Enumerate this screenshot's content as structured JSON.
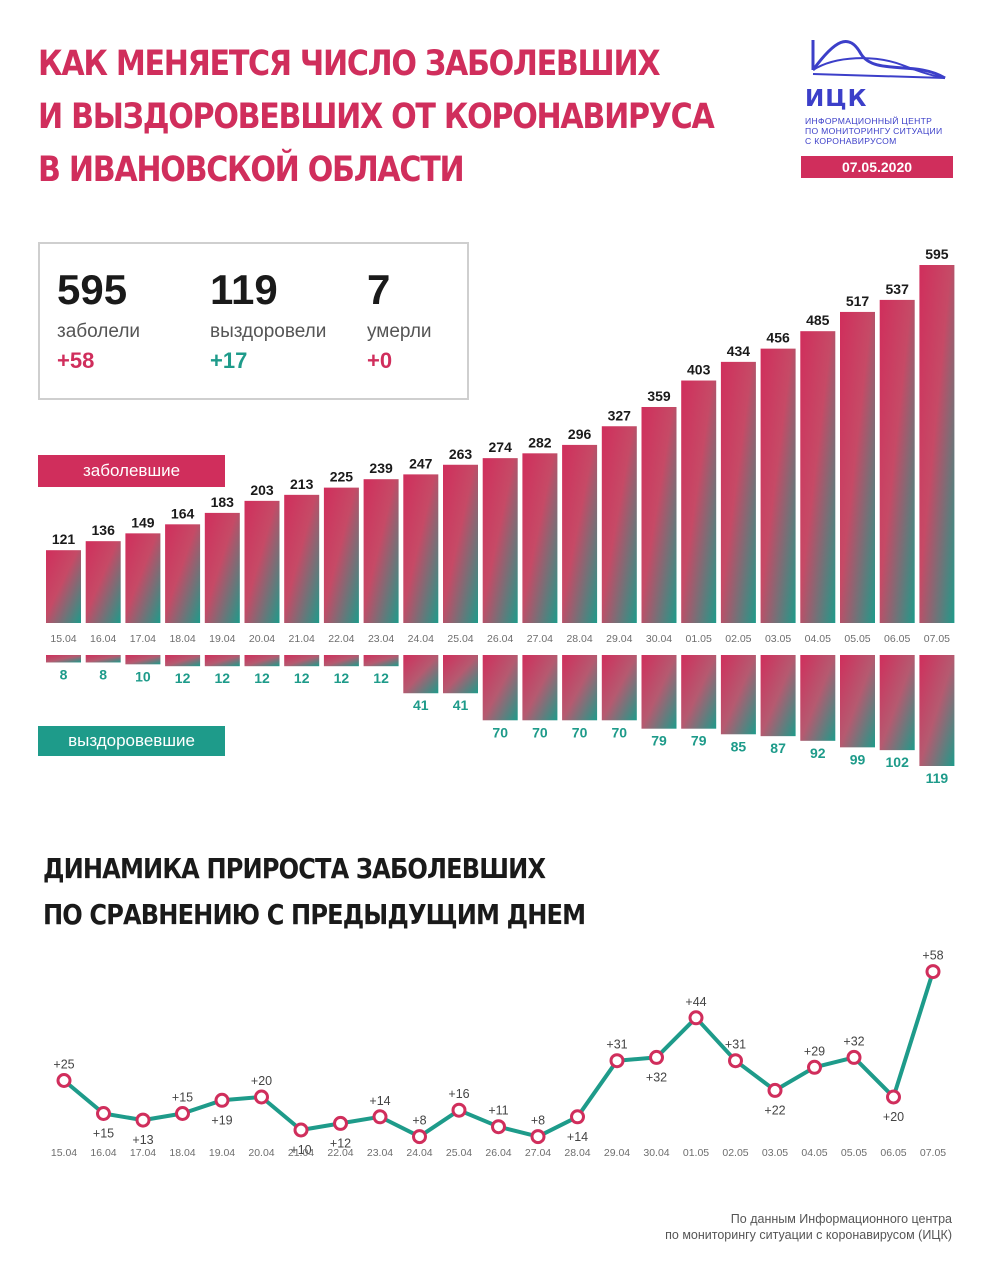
{
  "header": {
    "title_lines": [
      "КАК МЕНЯЕТСЯ ЧИСЛО ЗАБОЛЕВШИХ",
      "И ВЫЗДОРОВЕВШИХ ОТ КОРОНАВИРУСА",
      "В ИВАНОВСКОЙ ОБЛАСТИ"
    ],
    "logo_word": "ИЦК",
    "logo_sub_lines": [
      "ИНФОРМАЦИОННЫЙ ЦЕНТР",
      "ПО МОНИТОРИНГУ СИТУАЦИИ",
      "С КОРОНАВИРУСОМ"
    ],
    "date": "07.05.2020"
  },
  "stats": {
    "sick": {
      "value": "595",
      "label": "заболели",
      "delta": "+58"
    },
    "recovered": {
      "value": "119",
      "label": "выздоровели",
      "delta": "+17"
    },
    "died": {
      "value": "7",
      "label": "умерли",
      "delta": "+0"
    }
  },
  "badges": {
    "sick": "заболевшие",
    "recovered": "выздоровевшие"
  },
  "subtitle_lines": [
    "ДИНАМИКА ПРИРОСТА ЗАБОЛЕВШИХ",
    "ПО СРАВНЕНИЮ С ПРЕДЫДУЩИМ ДНЕМ"
  ],
  "source_lines": [
    "По данным Информационного центра",
    "по мониторингу ситуации с коронавирусом (ИЦК)"
  ],
  "colors": {
    "pink": "#d02e5c",
    "teal": "#1e9b8a",
    "logo": "#3c3fc9"
  },
  "chart_data": [
    {
      "type": "bar",
      "categories": [
        "15.04",
        "16.04",
        "17.04",
        "18.04",
        "19.04",
        "20.04",
        "21.04",
        "22.04",
        "23.04",
        "24.04",
        "25.04",
        "26.04",
        "27.04",
        "28.04",
        "29.04",
        "30.04",
        "01.05",
        "02.05",
        "03.05",
        "04.05",
        "05.05",
        "06.05",
        "07.05"
      ],
      "series": [
        {
          "name": "заболевшие",
          "values": [
            121,
            136,
            149,
            164,
            183,
            203,
            213,
            225,
            239,
            247,
            263,
            274,
            282,
            296,
            327,
            359,
            403,
            434,
            456,
            485,
            517,
            537,
            595
          ]
        },
        {
          "name": "выздоровевшие",
          "values": [
            8,
            8,
            10,
            12,
            12,
            12,
            12,
            12,
            12,
            41,
            41,
            70,
            70,
            70,
            70,
            79,
            79,
            85,
            87,
            92,
            99,
            102,
            119
          ]
        }
      ]
    },
    {
      "type": "line",
      "title": "ДИНАМИКА ПРИРОСТА ЗАБОЛЕВШИХ ПО СРАВНЕНИЮ С ПРЕДЫДУЩИМ ДНЕМ",
      "categories": [
        "15.04",
        "16.04",
        "17.04",
        "18.04",
        "19.04",
        "20.04",
        "21.04",
        "22.04",
        "23.04",
        "24.04",
        "25.04",
        "26.04",
        "27.04",
        "28.04",
        "29.04",
        "30.04",
        "01.05",
        "02.05",
        "03.05",
        "04.05",
        "05.05",
        "06.05",
        "07.05"
      ],
      "values": [
        25,
        15,
        13,
        15,
        19,
        20,
        10,
        12,
        14,
        8,
        16,
        11,
        8,
        14,
        31,
        32,
        44,
        31,
        22,
        29,
        32,
        20,
        58
      ],
      "labels": [
        "+25",
        "+15",
        "+13",
        "+15",
        "+19",
        "+20",
        "+10",
        "+12",
        "+14",
        "+8",
        "+16",
        "+11",
        "+8",
        "+14",
        "+31",
        "+32",
        "+44",
        "+31",
        "+22",
        "+29",
        "+32",
        "+20",
        "+58"
      ]
    }
  ]
}
